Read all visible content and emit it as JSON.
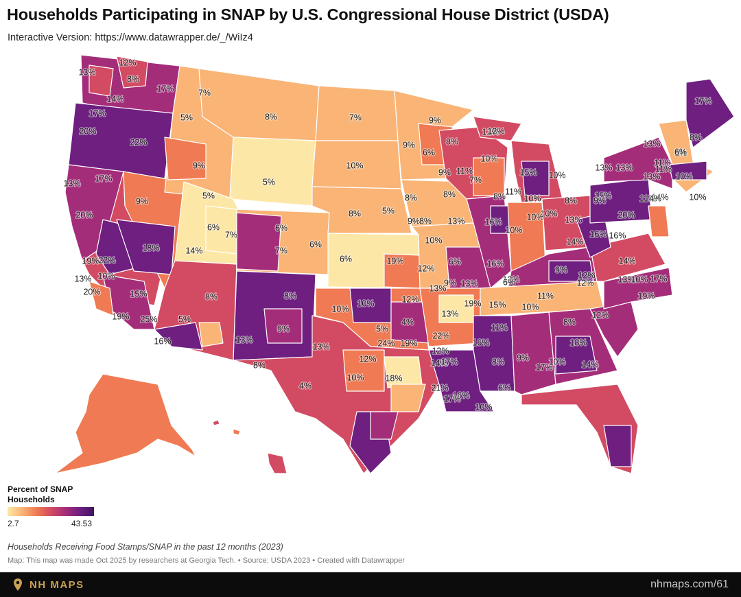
{
  "header": {
    "title": "Households Participating in SNAP by U.S. Congressional House District (USDA)",
    "subtitle": "Interactive Version: https://www.datawrapper.de/_/WiIz4"
  },
  "legend": {
    "title": "Percent of SNAP Households",
    "min_label": "2.7",
    "max_label": "43.53",
    "colors": [
      "#fde7a6",
      "#f9b476",
      "#ef7a53",
      "#d24b63",
      "#a42d7a",
      "#6e1f80",
      "#3e1460"
    ]
  },
  "map_labels": [
    "13%",
    "12%",
    "8%",
    "17%",
    "14%",
    "17%",
    "20%",
    "22%",
    "5%",
    "7%",
    "8%",
    "7%",
    "9%",
    "9%",
    "6%",
    "8%",
    "13%",
    "6%",
    "11%",
    "8%",
    "10%",
    "12%",
    "9%",
    "11%",
    "10%",
    "8%",
    "8%",
    "15%",
    "10%",
    "17%",
    "13%",
    "13%",
    "11%",
    "10%",
    "10%",
    "6%",
    "12%",
    "9%",
    "17%",
    "5%",
    "13%",
    "9%",
    "8%",
    "7%",
    "9%",
    "8%",
    "5%",
    "5%",
    "6%",
    "7%",
    "14%",
    "6%",
    "7%",
    "6%",
    "10%",
    "6%",
    "10%",
    "13%",
    "10%",
    "10%",
    "16%",
    "8%",
    "13%",
    "8%",
    "10%",
    "11%",
    "14%",
    "13%",
    "11%",
    "4%",
    "14%",
    "15%",
    "9%",
    "16%",
    "18%",
    "19%",
    "20%",
    "22%",
    "13%",
    "20%",
    "10%",
    "15%",
    "6%",
    "19%",
    "12%",
    "16%",
    "9%",
    "13%",
    "20%",
    "16%",
    "12%",
    "13%",
    "14%",
    "12%",
    "12%",
    "9%",
    "10%",
    "10%",
    "11%",
    "6%",
    "13%",
    "15%",
    "17%",
    "19%",
    "19%",
    "25%",
    "16%",
    "5%",
    "8%",
    "10%",
    "12%",
    "4%",
    "5%",
    "8%",
    "9%",
    "13%",
    "10%",
    "13%",
    "19%",
    "24%",
    "19%",
    "22%",
    "14%",
    "16%",
    "12%",
    "11%",
    "9%",
    "17%",
    "17%",
    "6%",
    "13%",
    "12%",
    "8%",
    "10%",
    "18%",
    "4%",
    "8%",
    "14%",
    "21%",
    "16%",
    "17%",
    "18%",
    "10%",
    "10%",
    "12%",
    "8%"
  ],
  "notes": {
    "description": "Households Receiving Food Stamps/SNAP in the past 12 months (2023)",
    "credits": "Map: This map was made Oct 2025 by researchers at Georgia Tech. • Source: USDA 2023 • Created with Datawrapper"
  },
  "footer": {
    "brand": "NH MAPS",
    "url": "nhmaps.com/61",
    "brand_color": "#c9a152",
    "icon": "map-pin-icon"
  }
}
